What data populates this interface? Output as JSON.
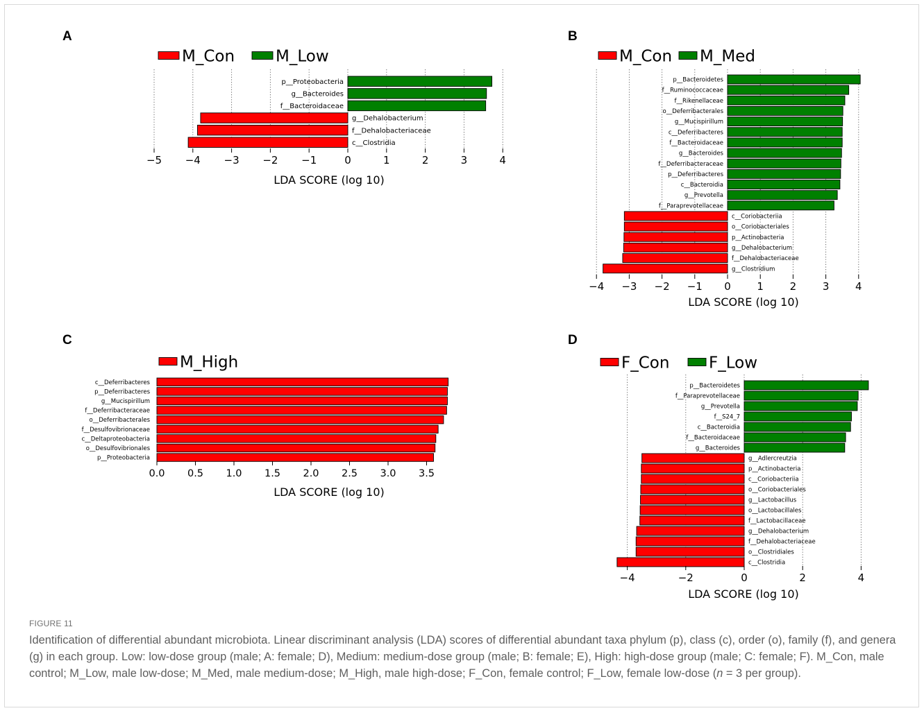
{
  "chart_data": [
    {
      "type": "bar",
      "orientation": "horizontal",
      "panel_letter": "A",
      "xlabel": "LDA SCORE (log 10)",
      "xlim": [
        -5,
        4.5
      ],
      "xticks": [
        -5,
        -4,
        -3,
        -2,
        -1,
        0,
        1,
        2,
        3,
        4
      ],
      "legend": [
        {
          "name": "M_Con",
          "color": "#ff0000"
        },
        {
          "name": "M_Low",
          "color": "#008000"
        }
      ],
      "bars": [
        {
          "label": "p__Proteobacteria",
          "value": 3.72,
          "group": "M_Low"
        },
        {
          "label": "g__Bacteroides",
          "value": 3.58,
          "group": "M_Low"
        },
        {
          "label": "f__Bacteroidaceae",
          "value": 3.56,
          "group": "M_Low"
        },
        {
          "label": "g__Dehalobacterium",
          "value": -3.8,
          "group": "M_Con"
        },
        {
          "label": "f__Dehalobacteriaceae",
          "value": -3.88,
          "group": "M_Con"
        },
        {
          "label": "c__Clostridia",
          "value": -4.12,
          "group": "M_Con"
        }
      ]
    },
    {
      "type": "bar",
      "orientation": "horizontal",
      "panel_letter": "B",
      "xlabel": "LDA SCORE (log 10)",
      "xlim": [
        -4.3,
        4.3
      ],
      "xticks": [
        -4,
        -3,
        -2,
        -1,
        0,
        1,
        2,
        3,
        4
      ],
      "legend": [
        {
          "name": "M_Con",
          "color": "#ff0000"
        },
        {
          "name": "M_Med",
          "color": "#008000"
        }
      ],
      "bars": [
        {
          "label": "p__Bacteroidetes",
          "value": 4.05,
          "group": "M_Med"
        },
        {
          "label": "f__Ruminococcaceae",
          "value": 3.7,
          "group": "M_Med"
        },
        {
          "label": "f__Rikenellaceae",
          "value": 3.58,
          "group": "M_Med"
        },
        {
          "label": "o__Deferribacterales",
          "value": 3.52,
          "group": "M_Med"
        },
        {
          "label": "g__Mucispirillum",
          "value": 3.51,
          "group": "M_Med"
        },
        {
          "label": "c__Deferribacteres",
          "value": 3.5,
          "group": "M_Med"
        },
        {
          "label": "f__Bacteroidaceae",
          "value": 3.5,
          "group": "M_Med"
        },
        {
          "label": "g__Bacteroides",
          "value": 3.48,
          "group": "M_Med"
        },
        {
          "label": "f__Deferribacteraceae",
          "value": 3.46,
          "group": "M_Med"
        },
        {
          "label": "p__Deferribacteres",
          "value": 3.45,
          "group": "M_Med"
        },
        {
          "label": "c__Bacteroidia",
          "value": 3.43,
          "group": "M_Med"
        },
        {
          "label": "g__Prevotella",
          "value": 3.35,
          "group": "M_Med"
        },
        {
          "label": "f__Paraprevotellaceae",
          "value": 3.25,
          "group": "M_Med"
        },
        {
          "label": "c__Coriobacteriia",
          "value": -3.15,
          "group": "M_Con"
        },
        {
          "label": "o__Coriobacteriales",
          "value": -3.15,
          "group": "M_Con"
        },
        {
          "label": "p__Actinobacteria",
          "value": -3.16,
          "group": "M_Con"
        },
        {
          "label": "g__Dehalobacterium",
          "value": -3.17,
          "group": "M_Con"
        },
        {
          "label": "f__Dehalobacteriaceae",
          "value": -3.2,
          "group": "M_Con"
        },
        {
          "label": "g__Clostridium",
          "value": -3.8,
          "group": "M_Con"
        }
      ]
    },
    {
      "type": "bar",
      "orientation": "horizontal",
      "panel_letter": "C",
      "xlabel": "LDA SCORE (log 10)",
      "xlim": [
        0,
        3.8
      ],
      "xticks": [
        0.0,
        0.5,
        1.0,
        1.5,
        2.0,
        2.5,
        3.0,
        3.5
      ],
      "xtick_labels": [
        "0.0",
        "0.5",
        "1.0",
        "1.5",
        "2.0",
        "2.5",
        "3.0",
        "3.5"
      ],
      "legend": [
        {
          "name": "M_High",
          "color": "#ff0000"
        }
      ],
      "bars": [
        {
          "label": "c__Deferribacteres",
          "value": 3.78,
          "group": "M_High"
        },
        {
          "label": "p__Deferribacteres",
          "value": 3.77,
          "group": "M_High"
        },
        {
          "label": "g__Mucispirillum",
          "value": 3.77,
          "group": "M_High"
        },
        {
          "label": "f__Deferribacteraceae",
          "value": 3.76,
          "group": "M_High"
        },
        {
          "label": "o__Deferribacterales",
          "value": 3.72,
          "group": "M_High"
        },
        {
          "label": "f__Desulfovibrionaceae",
          "value": 3.65,
          "group": "M_High"
        },
        {
          "label": "c__Deltaproteobacteria",
          "value": 3.62,
          "group": "M_High"
        },
        {
          "label": "o__Desulfovibrionales",
          "value": 3.61,
          "group": "M_High"
        },
        {
          "label": "p__Proteobacteria",
          "value": 3.59,
          "group": "M_High"
        }
      ]
    },
    {
      "type": "bar",
      "orientation": "horizontal",
      "panel_letter": "D",
      "xlabel": "LDA SCORE (log 10)",
      "xlim": [
        -4.5,
        4.5
      ],
      "xticks": [
        -4,
        -2,
        0,
        2,
        4
      ],
      "legend": [
        {
          "name": "F_Con",
          "color": "#ff0000"
        },
        {
          "name": "F_Low",
          "color": "#008000"
        }
      ],
      "bars": [
        {
          "label": "p__Bacteroidetes",
          "value": 4.25,
          "group": "F_Low"
        },
        {
          "label": "f__Paraprevotellaceae",
          "value": 3.9,
          "group": "F_Low"
        },
        {
          "label": "g__Prevotella",
          "value": 3.87,
          "group": "F_Low"
        },
        {
          "label": "f__S24_7",
          "value": 3.67,
          "group": "F_Low"
        },
        {
          "label": "c__Bacteroidia",
          "value": 3.64,
          "group": "F_Low"
        },
        {
          "label": "f__Bacteroidaceae",
          "value": 3.47,
          "group": "F_Low"
        },
        {
          "label": "g__Bacteroides",
          "value": 3.44,
          "group": "F_Low"
        },
        {
          "label": "g__Adlercreutzia",
          "value": -3.5,
          "group": "F_Con"
        },
        {
          "label": "p__Actinobacteria",
          "value": -3.52,
          "group": "F_Con"
        },
        {
          "label": "c__Coriobacteriia",
          "value": -3.52,
          "group": "F_Con"
        },
        {
          "label": "o__Coriobacteriales",
          "value": -3.54,
          "group": "F_Con"
        },
        {
          "label": "g__Lactobacillus",
          "value": -3.55,
          "group": "F_Con"
        },
        {
          "label": "o__Lactobacillales",
          "value": -3.56,
          "group": "F_Con"
        },
        {
          "label": "f__Lactobacillaceae",
          "value": -3.57,
          "group": "F_Con"
        },
        {
          "label": "g__Dehalobacterium",
          "value": -3.68,
          "group": "F_Con"
        },
        {
          "label": "f__Dehalobacteriaceae",
          "value": -3.7,
          "group": "F_Con"
        },
        {
          "label": "o__Clostridiales",
          "value": -3.7,
          "group": "F_Con"
        },
        {
          "label": "c__Clostridia",
          "value": -4.35,
          "group": "F_Con"
        }
      ]
    }
  ],
  "figure_label": "FIGURE 11",
  "caption": {
    "part1": "Identification of differential abundant microbiota. Linear discriminant analysis (LDA) scores of differential abundant taxa phylum (p), class (c), order (o), family (f), and genera (g) in each group. Low: low-dose group (male; A: female; D), Medium: medium-dose group (male; B: female; E), High: high-dose group (male; C: female; F). M_Con, male control; M_Low, male low-dose; M_Med, male medium-dose; M_High, male high-dose; F_Con, female control; F_Low, female low-dose (",
    "italic": "n",
    "part2": " = 3 per group)."
  },
  "colors": {
    "negative": "#ff0000",
    "positive": "#008000",
    "caption_text": "#5e5e5e"
  }
}
